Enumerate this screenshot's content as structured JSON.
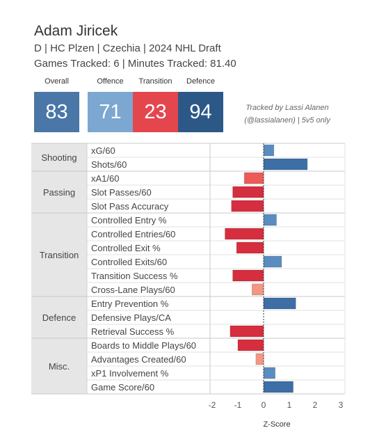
{
  "player": {
    "name": "Adam Jiricek",
    "subtitle": "D | HC Plzen | Czechia | 2024 NHL Draft",
    "games_minutes": "Games Tracked: 6 | Minutes Tracked: 81.40"
  },
  "scores": {
    "overall": {
      "label": "Overall",
      "value": "83",
      "color": "#4a76a8"
    },
    "offence": {
      "label": "Offence",
      "value": "71",
      "color": "#7ba7d1"
    },
    "transition": {
      "label": "Transition",
      "value": "23",
      "color": "#e4464e"
    },
    "defence": {
      "label": "Defence",
      "value": "94",
      "color": "#2c5888"
    }
  },
  "credit": {
    "line1": "Tracked by Lassi Alanen",
    "line2": "(@lassialanen) | 5v5 only"
  },
  "chart_data": {
    "type": "bar",
    "orientation": "horizontal",
    "xlabel": "Z-Score",
    "xlim": [
      -2,
      3
    ],
    "xticks": [
      "-2",
      "-1",
      "0",
      "1",
      "2",
      "3"
    ],
    "groups": [
      {
        "name": "Shooting",
        "metrics": [
          {
            "label": "xG/60",
            "value": 0.4
          },
          {
            "label": "Shots/60",
            "value": 1.7
          }
        ]
      },
      {
        "name": "Passing",
        "metrics": [
          {
            "label": "xA1/60",
            "value": -0.75
          },
          {
            "label": "Slot Passes/60",
            "value": -1.2
          },
          {
            "label": "Slot Pass Accuracy",
            "value": -1.25
          }
        ]
      },
      {
        "name": "Transition",
        "metrics": [
          {
            "label": "Controlled Entry %",
            "value": 0.5
          },
          {
            "label": "Controlled Entries/60",
            "value": -1.5
          },
          {
            "label": "Controlled Exit %",
            "value": -1.05
          },
          {
            "label": "Controlled Exits/60",
            "value": 0.7
          },
          {
            "label": "Transition Success %",
            "value": -1.2
          },
          {
            "label": "Cross-Lane Plays/60",
            "value": -0.45
          }
        ]
      },
      {
        "name": "Defence",
        "metrics": [
          {
            "label": "Entry Prevention %",
            "value": 1.25
          },
          {
            "label": "Defensive Plays/CA",
            "value": 0.0
          },
          {
            "label": "Retrieval Success %",
            "value": -1.3
          }
        ]
      },
      {
        "name": "Misc.",
        "metrics": [
          {
            "label": "Boards to Middle Plays/60",
            "value": -1.0
          },
          {
            "label": "Advantages Created/60",
            "value": -0.3
          },
          {
            "label": "xP1 Involvement %",
            "value": 0.45
          },
          {
            "label": "Game Score/60",
            "value": 1.15
          }
        ]
      }
    ]
  }
}
